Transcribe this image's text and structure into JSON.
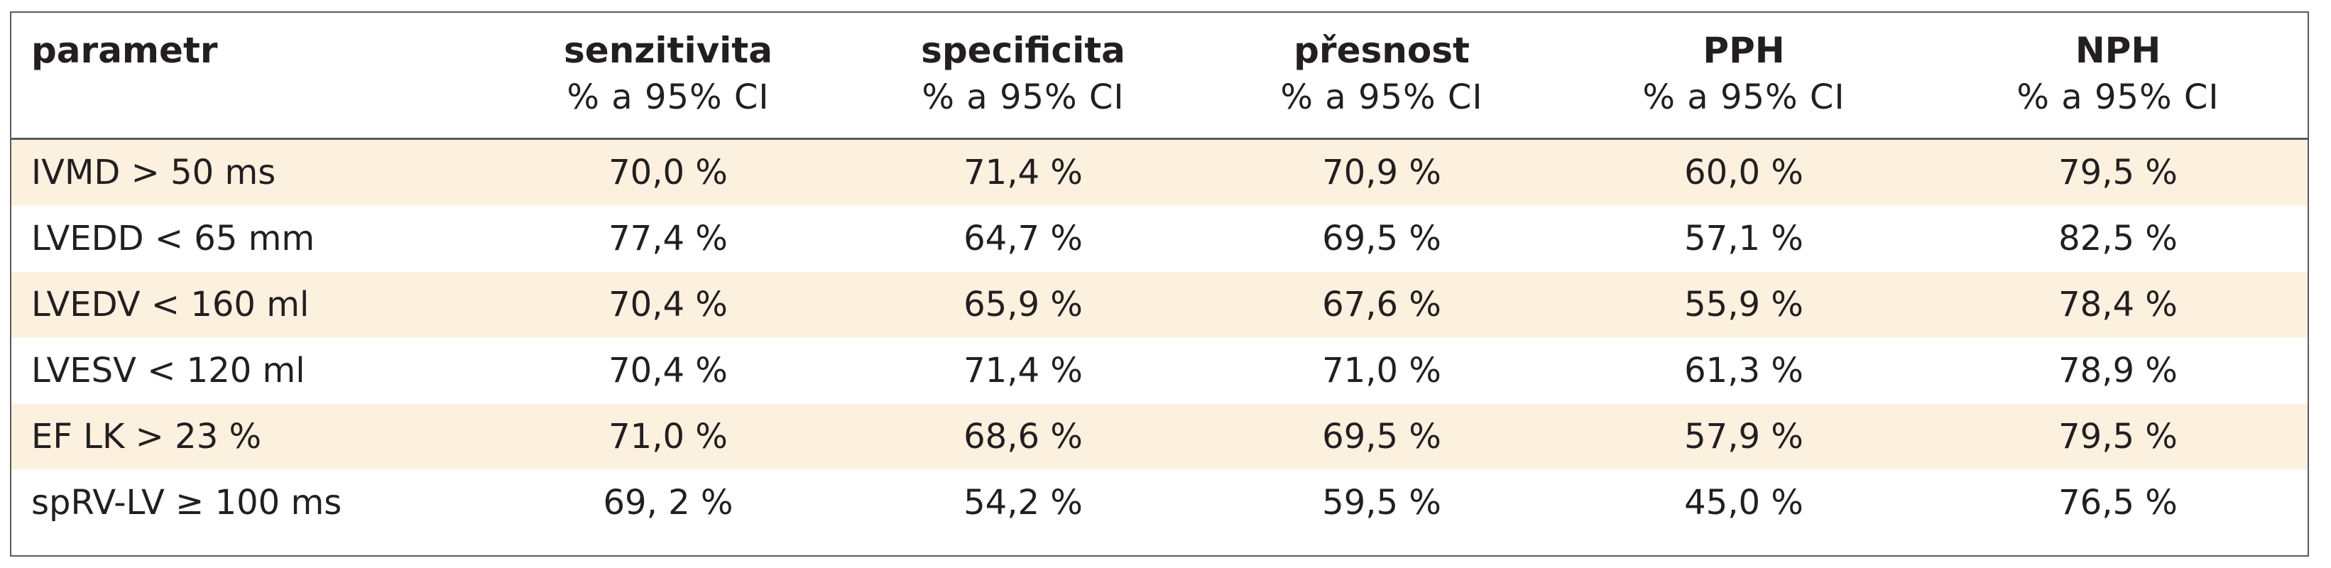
{
  "table": {
    "headers": [
      {
        "title": "parametr",
        "sub": ""
      },
      {
        "title": "senzitivita",
        "sub": "% a 95% CI"
      },
      {
        "title": "specificita",
        "sub": "% a 95% CI"
      },
      {
        "title": "přesnost",
        "sub": "% a 95% CI"
      },
      {
        "title": "PPH",
        "sub": "% a 95% CI"
      },
      {
        "title": "NPH",
        "sub": "% a 95% CI"
      }
    ],
    "rows": [
      [
        "IVMD > 50 ms",
        "70,0 %",
        "71,4 %",
        "70,9 %",
        "60,0 %",
        "79,5 %"
      ],
      [
        "LVEDD < 65 mm",
        "77,4 %",
        "64,7 %",
        "69,5 %",
        "57,1 %",
        "82,5 %"
      ],
      [
        "LVEDV < 160 ml",
        "70,4 %",
        "65,9 %",
        "67,6 %",
        "55,9 %",
        "78,4 %"
      ],
      [
        "LVESV < 120 ml",
        "70,4 %",
        "71,4 %",
        "71,0 %",
        "61,3 %",
        "78,9 %"
      ],
      [
        "EF LK > 23 %",
        "71,0 %",
        "68,6 %",
        "69,5 %",
        "57,9 %",
        "79,5 %"
      ],
      [
        "spRV-LV ≥ 100 ms",
        "69, 2 %",
        "54,2 %",
        "59,5 %",
        "45,0 %",
        "76,5 %"
      ]
    ],
    "colors": {
      "row_shade": "#fcf0df",
      "border": "#5a5a5a",
      "text": "#231f20"
    }
  }
}
